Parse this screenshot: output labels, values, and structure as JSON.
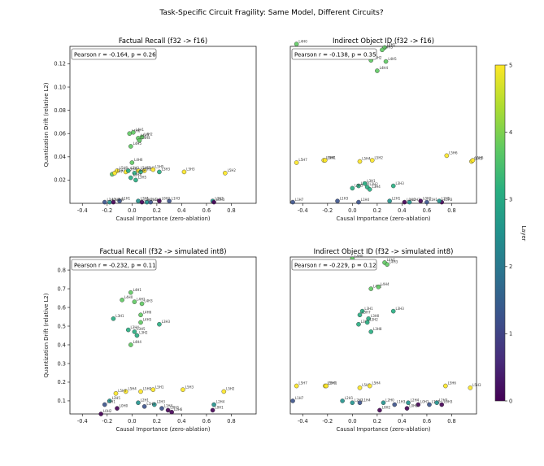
{
  "figure": {
    "title": "Task-Specific Circuit Fragility: Same Model, Different Circuits?"
  },
  "colorbar": {
    "label": "Layer",
    "ticks": [
      "0",
      "1",
      "2",
      "3",
      "4",
      "5"
    ],
    "colormap": "viridis"
  },
  "chart_data": [
    {
      "type": "scatter",
      "title": "Factual Recall (f32 -> f16)",
      "xlabel": "Causal Importance (zero-ablation)",
      "ylabel": "Quantization Drift (relative L2)",
      "xlim": [
        -0.5,
        1.0
      ],
      "ylim": [
        0.0,
        0.135
      ],
      "xticks": [
        "-0.4",
        "-0.2",
        "0.0",
        "0.2",
        "0.4",
        "0.6",
        "0.8"
      ],
      "yticks": [
        "0.02",
        "0.04",
        "0.06",
        "0.08",
        "0.10",
        "0.12"
      ],
      "annotation": "Pearson r = -0.164, p = 0.26",
      "points": [
        {
          "label": "L4H0",
          "x": -0.02,
          "y": 0.06,
          "layer": 4
        },
        {
          "label": "L4H1",
          "x": 0.01,
          "y": 0.061,
          "layer": 4
        },
        {
          "label": "L4H2",
          "x": 0.08,
          "y": 0.057,
          "layer": 4
        },
        {
          "label": "L4H3",
          "x": 0.05,
          "y": 0.056,
          "layer": 4
        },
        {
          "label": "L4H4",
          "x": 0.06,
          "y": 0.054,
          "layer": 4
        },
        {
          "label": "L4H5",
          "x": -0.01,
          "y": 0.049,
          "layer": 4
        },
        {
          "label": "L4H6",
          "x": 0.0,
          "y": 0.035,
          "layer": 4
        },
        {
          "label": "L4H7",
          "x": -0.16,
          "y": 0.025,
          "layer": 4
        },
        {
          "label": "L5H0",
          "x": -0.12,
          "y": 0.028,
          "layer": 5
        },
        {
          "label": "L5H1",
          "x": 0.1,
          "y": 0.028,
          "layer": 5
        },
        {
          "label": "L5H2",
          "x": 0.75,
          "y": 0.026,
          "layer": 5
        },
        {
          "label": "L5H3",
          "x": 0.42,
          "y": 0.027,
          "layer": 5
        },
        {
          "label": "L5H4",
          "x": -0.05,
          "y": 0.027,
          "layer": 5
        },
        {
          "label": "L5H5",
          "x": 0.17,
          "y": 0.029,
          "layer": 5
        },
        {
          "label": "L5H6",
          "x": 0.05,
          "y": 0.028,
          "layer": 5
        },
        {
          "label": "L5H7",
          "x": -0.14,
          "y": 0.026,
          "layer": 5
        },
        {
          "label": "L3H0",
          "x": -0.03,
          "y": 0.028,
          "layer": 3
        },
        {
          "label": "L3H1",
          "x": 0.07,
          "y": 0.027,
          "layer": 3
        },
        {
          "label": "L3H2",
          "x": 0.02,
          "y": 0.026,
          "layer": 3
        },
        {
          "label": "L3H3",
          "x": 0.22,
          "y": 0.027,
          "layer": 3
        },
        {
          "label": "L3H4",
          "x": -0.01,
          "y": 0.022,
          "layer": 3
        },
        {
          "label": "L3H5",
          "x": 0.03,
          "y": 0.02,
          "layer": 3
        },
        {
          "label": "L2H0",
          "x": -0.18,
          "y": 0.001,
          "layer": 2
        },
        {
          "label": "L2H1",
          "x": 0.05,
          "y": 0.002,
          "layer": 2
        },
        {
          "label": "L2H2",
          "x": 0.12,
          "y": 0.001,
          "layer": 2
        },
        {
          "label": "L2H3",
          "x": 0.65,
          "y": 0.002,
          "layer": 2
        },
        {
          "label": "L1H0",
          "x": -0.22,
          "y": 0.001,
          "layer": 1
        },
        {
          "label": "L1H1",
          "x": -0.1,
          "y": 0.002,
          "layer": 1
        },
        {
          "label": "L1H2",
          "x": 0.15,
          "y": 0.001,
          "layer": 1
        },
        {
          "label": "L1H3",
          "x": 0.3,
          "y": 0.002,
          "layer": 1
        },
        {
          "label": "L0H0",
          "x": -0.15,
          "y": 0.001,
          "layer": 0
        },
        {
          "label": "L0H1",
          "x": 0.08,
          "y": 0.001,
          "layer": 0
        },
        {
          "label": "L0H2",
          "x": 0.22,
          "y": 0.002,
          "layer": 0
        },
        {
          "label": "L0H3",
          "x": 0.66,
          "y": 0.001,
          "layer": 0
        }
      ]
    },
    {
      "type": "scatter",
      "title": "Indirect Object ID (f32 -> f16)",
      "xlabel": "Causal Importance (zero-ablation)",
      "ylabel": "",
      "xlim": [
        -0.5,
        1.0
      ],
      "ylim": [
        0.0,
        0.135
      ],
      "xticks": [
        "-0.4",
        "-0.2",
        "0.0",
        "0.2",
        "0.4",
        "0.6",
        "0.8"
      ],
      "yticks": [],
      "annotation": "Pearson r = -0.138, p = 0.35",
      "points": [
        {
          "label": "L4H0",
          "x": -0.45,
          "y": 0.137,
          "layer": 4
        },
        {
          "label": "L4H1",
          "x": 0.26,
          "y": 0.134,
          "layer": 4
        },
        {
          "label": "L4H3",
          "x": 0.24,
          "y": 0.132,
          "layer": 4
        },
        {
          "label": "L4H2",
          "x": 0.15,
          "y": 0.123,
          "layer": 4
        },
        {
          "label": "L4H5",
          "x": 0.27,
          "y": 0.122,
          "layer": 4
        },
        {
          "label": "L4H4",
          "x": 0.2,
          "y": 0.114,
          "layer": 4
        },
        {
          "label": "L5H7",
          "x": -0.45,
          "y": 0.035,
          "layer": 5
        },
        {
          "label": "L5H0",
          "x": -0.23,
          "y": 0.037,
          "layer": 5
        },
        {
          "label": "L5H1",
          "x": -0.22,
          "y": 0.037,
          "layer": 5
        },
        {
          "label": "L5H4",
          "x": 0.06,
          "y": 0.036,
          "layer": 5
        },
        {
          "label": "L5H2",
          "x": 0.16,
          "y": 0.037,
          "layer": 5
        },
        {
          "label": "L5H6",
          "x": 0.76,
          "y": 0.041,
          "layer": 5
        },
        {
          "label": "L5H3",
          "x": 0.96,
          "y": 0.036,
          "layer": 5
        },
        {
          "label": "L5H5",
          "x": 0.97,
          "y": 0.037,
          "layer": 5
        },
        {
          "label": "L3H0",
          "x": 0.05,
          "y": 0.015,
          "layer": 3
        },
        {
          "label": "L3H1",
          "x": 0.1,
          "y": 0.017,
          "layer": 3
        },
        {
          "label": "L3H2",
          "x": 0.12,
          "y": 0.014,
          "layer": 3
        },
        {
          "label": "L3H3",
          "x": 0.33,
          "y": 0.015,
          "layer": 3
        },
        {
          "label": "L3H4",
          "x": 0.14,
          "y": 0.012,
          "layer": 3
        },
        {
          "label": "L3H5",
          "x": 0.0,
          "y": 0.013,
          "layer": 3
        },
        {
          "label": "L1H7",
          "x": -0.48,
          "y": 0.001,
          "layer": 1
        },
        {
          "label": "L1H3",
          "x": -0.12,
          "y": 0.002,
          "layer": 1
        },
        {
          "label": "L1H4",
          "x": 0.05,
          "y": 0.001,
          "layer": 1
        },
        {
          "label": "L2H1",
          "x": 0.3,
          "y": 0.002,
          "layer": 2
        },
        {
          "label": "L2H3",
          "x": 0.46,
          "y": 0.001,
          "layer": 2
        },
        {
          "label": "L0H0",
          "x": 0.42,
          "y": 0.001,
          "layer": 0
        },
        {
          "label": "L0H1",
          "x": 0.55,
          "y": 0.002,
          "layer": 0
        },
        {
          "label": "L0H3",
          "x": 0.72,
          "y": 0.001,
          "layer": 0
        },
        {
          "label": "L1H1",
          "x": 0.6,
          "y": 0.001,
          "layer": 1
        },
        {
          "label": "L2H5",
          "x": 0.7,
          "y": 0.002,
          "layer": 2
        }
      ]
    },
    {
      "type": "scatter",
      "title": "Factual Recall (f32 -> simulated int8)",
      "xlabel": "Causal Importance (zero-ablation)",
      "ylabel": "Quantization Drift (relative L2)",
      "xlim": [
        -0.5,
        1.0
      ],
      "ylim": [
        0.03,
        0.87
      ],
      "xticks": [
        "-0.4",
        "-0.2",
        "0.0",
        "0.2",
        "0.4",
        "0.6",
        "0.8"
      ],
      "yticks": [
        "0.1",
        "0.2",
        "0.3",
        "0.4",
        "0.5",
        "0.6",
        "0.7",
        "0.8"
      ],
      "annotation": "Pearson r = -0.232, p = 0.11",
      "points": [
        {
          "label": "L4H1",
          "x": -0.01,
          "y": 0.68,
          "layer": 4
        },
        {
          "label": "L4H0",
          "x": -0.08,
          "y": 0.64,
          "layer": 4
        },
        {
          "label": "L4H2",
          "x": 0.02,
          "y": 0.63,
          "layer": 4
        },
        {
          "label": "L4H3",
          "x": 0.08,
          "y": 0.62,
          "layer": 4
        },
        {
          "label": "L4H6",
          "x": 0.07,
          "y": 0.56,
          "layer": 4
        },
        {
          "label": "L3H1",
          "x": -0.15,
          "y": 0.54,
          "layer": 3
        },
        {
          "label": "L4H5",
          "x": 0.07,
          "y": 0.52,
          "layer": 4
        },
        {
          "label": "L3H3",
          "x": 0.22,
          "y": 0.51,
          "layer": 3
        },
        {
          "label": "L3H4",
          "x": -0.03,
          "y": 0.48,
          "layer": 3
        },
        {
          "label": "L3H5",
          "x": 0.02,
          "y": 0.47,
          "layer": 3
        },
        {
          "label": "L3H2",
          "x": 0.04,
          "y": 0.45,
          "layer": 3
        },
        {
          "label": "L4H4",
          "x": -0.01,
          "y": 0.4,
          "layer": 4
        },
        {
          "label": "L5H2",
          "x": 0.74,
          "y": 0.15,
          "layer": 5
        },
        {
          "label": "L5H3",
          "x": 0.41,
          "y": 0.16,
          "layer": 5
        },
        {
          "label": "L5H1",
          "x": 0.17,
          "y": 0.16,
          "layer": 5
        },
        {
          "label": "L5H4",
          "x": -0.05,
          "y": 0.15,
          "layer": 5
        },
        {
          "label": "L5H7",
          "x": -0.13,
          "y": 0.14,
          "layer": 5
        },
        {
          "label": "L5H0",
          "x": 0.07,
          "y": 0.15,
          "layer": 5
        },
        {
          "label": "L2H5",
          "x": -0.18,
          "y": 0.1,
          "layer": 2
        },
        {
          "label": "L2H1",
          "x": 0.05,
          "y": 0.09,
          "layer": 2
        },
        {
          "label": "L2H3",
          "x": 0.18,
          "y": 0.08,
          "layer": 2
        },
        {
          "label": "L2H4",
          "x": 0.66,
          "y": 0.08,
          "layer": 2
        },
        {
          "label": "L1H1",
          "x": -0.22,
          "y": 0.08,
          "layer": 1
        },
        {
          "label": "L1H3",
          "x": 0.1,
          "y": 0.07,
          "layer": 1
        },
        {
          "label": "L1H4",
          "x": 0.24,
          "y": 0.06,
          "layer": 1
        },
        {
          "label": "L0H0",
          "x": -0.12,
          "y": 0.06,
          "layer": 0
        },
        {
          "label": "L0H3",
          "x": 0.29,
          "y": 0.05,
          "layer": 0
        },
        {
          "label": "L0H6",
          "x": 0.32,
          "y": 0.04,
          "layer": 0
        },
        {
          "label": "L0H1",
          "x": 0.65,
          "y": 0.05,
          "layer": 0
        },
        {
          "label": "L0H2",
          "x": -0.25,
          "y": 0.03,
          "layer": 0
        }
      ]
    },
    {
      "type": "scatter",
      "title": "Indirect Object ID (f32 -> simulated int8)",
      "xlabel": "Causal Importance (zero-ablation)",
      "ylabel": "",
      "xlim": [
        -0.5,
        1.0
      ],
      "ylim": [
        0.03,
        0.87
      ],
      "xticks": [
        "-0.4",
        "-0.2",
        "0.0",
        "0.2",
        "0.4",
        "0.6",
        "0.8"
      ],
      "yticks": [],
      "annotation": "Pearson r = -0.229, p = 0.12",
      "points": [
        {
          "label": "L4H0",
          "x": 0.0,
          "y": 0.86,
          "layer": 4
        },
        {
          "label": "L4H1",
          "x": 0.26,
          "y": 0.84,
          "layer": 4
        },
        {
          "label": "L4H3",
          "x": 0.28,
          "y": 0.83,
          "layer": 4
        },
        {
          "label": "L4H2",
          "x": 0.15,
          "y": 0.7,
          "layer": 4
        },
        {
          "label": "L4H4",
          "x": 0.21,
          "y": 0.71,
          "layer": 4
        },
        {
          "label": "L3H1",
          "x": 0.08,
          "y": 0.58,
          "layer": 3
        },
        {
          "label": "L3H7",
          "x": 0.06,
          "y": 0.56,
          "layer": 3
        },
        {
          "label": "L3H3",
          "x": 0.33,
          "y": 0.58,
          "layer": 3
        },
        {
          "label": "L3H0",
          "x": 0.13,
          "y": 0.54,
          "layer": 3
        },
        {
          "label": "L3H5",
          "x": 0.05,
          "y": 0.51,
          "layer": 3
        },
        {
          "label": "L3H2",
          "x": 0.12,
          "y": 0.52,
          "layer": 3
        },
        {
          "label": "L3H8",
          "x": 0.15,
          "y": 0.47,
          "layer": 3
        },
        {
          "label": "L5H7",
          "x": -0.45,
          "y": 0.18,
          "layer": 5
        },
        {
          "label": "L5H0",
          "x": -0.22,
          "y": 0.18,
          "layer": 5
        },
        {
          "label": "L5H1",
          "x": -0.21,
          "y": 0.18,
          "layer": 5
        },
        {
          "label": "L5H2",
          "x": 0.06,
          "y": 0.17,
          "layer": 5
        },
        {
          "label": "L5H4",
          "x": 0.14,
          "y": 0.18,
          "layer": 5
        },
        {
          "label": "L5H6",
          "x": 0.75,
          "y": 0.18,
          "layer": 5
        },
        {
          "label": "L5H3",
          "x": 0.95,
          "y": 0.17,
          "layer": 5
        },
        {
          "label": "L1H7",
          "x": -0.48,
          "y": 0.1,
          "layer": 1
        },
        {
          "label": "L2H1",
          "x": -0.08,
          "y": 0.1,
          "layer": 2
        },
        {
          "label": "L2H2",
          "x": 0.0,
          "y": 0.09,
          "layer": 2
        },
        {
          "label": "L1H4",
          "x": 0.06,
          "y": 0.09,
          "layer": 1
        },
        {
          "label": "L2H0",
          "x": 0.25,
          "y": 0.09,
          "layer": 2
        },
        {
          "label": "L1H3",
          "x": 0.34,
          "y": 0.08,
          "layer": 1
        },
        {
          "label": "L2H4",
          "x": 0.45,
          "y": 0.09,
          "layer": 2
        },
        {
          "label": "L0H1",
          "x": 0.53,
          "y": 0.08,
          "layer": 0
        },
        {
          "label": "L0H3",
          "x": 0.72,
          "y": 0.08,
          "layer": 0
        },
        {
          "label": "L1H1",
          "x": 0.62,
          "y": 0.08,
          "layer": 1
        },
        {
          "label": "L0H0",
          "x": 0.44,
          "y": 0.06,
          "layer": 0
        },
        {
          "label": "L2H3",
          "x": 0.68,
          "y": 0.09,
          "layer": 2
        },
        {
          "label": "L0H2",
          "x": 0.22,
          "y": 0.05,
          "layer": 0
        }
      ]
    }
  ]
}
